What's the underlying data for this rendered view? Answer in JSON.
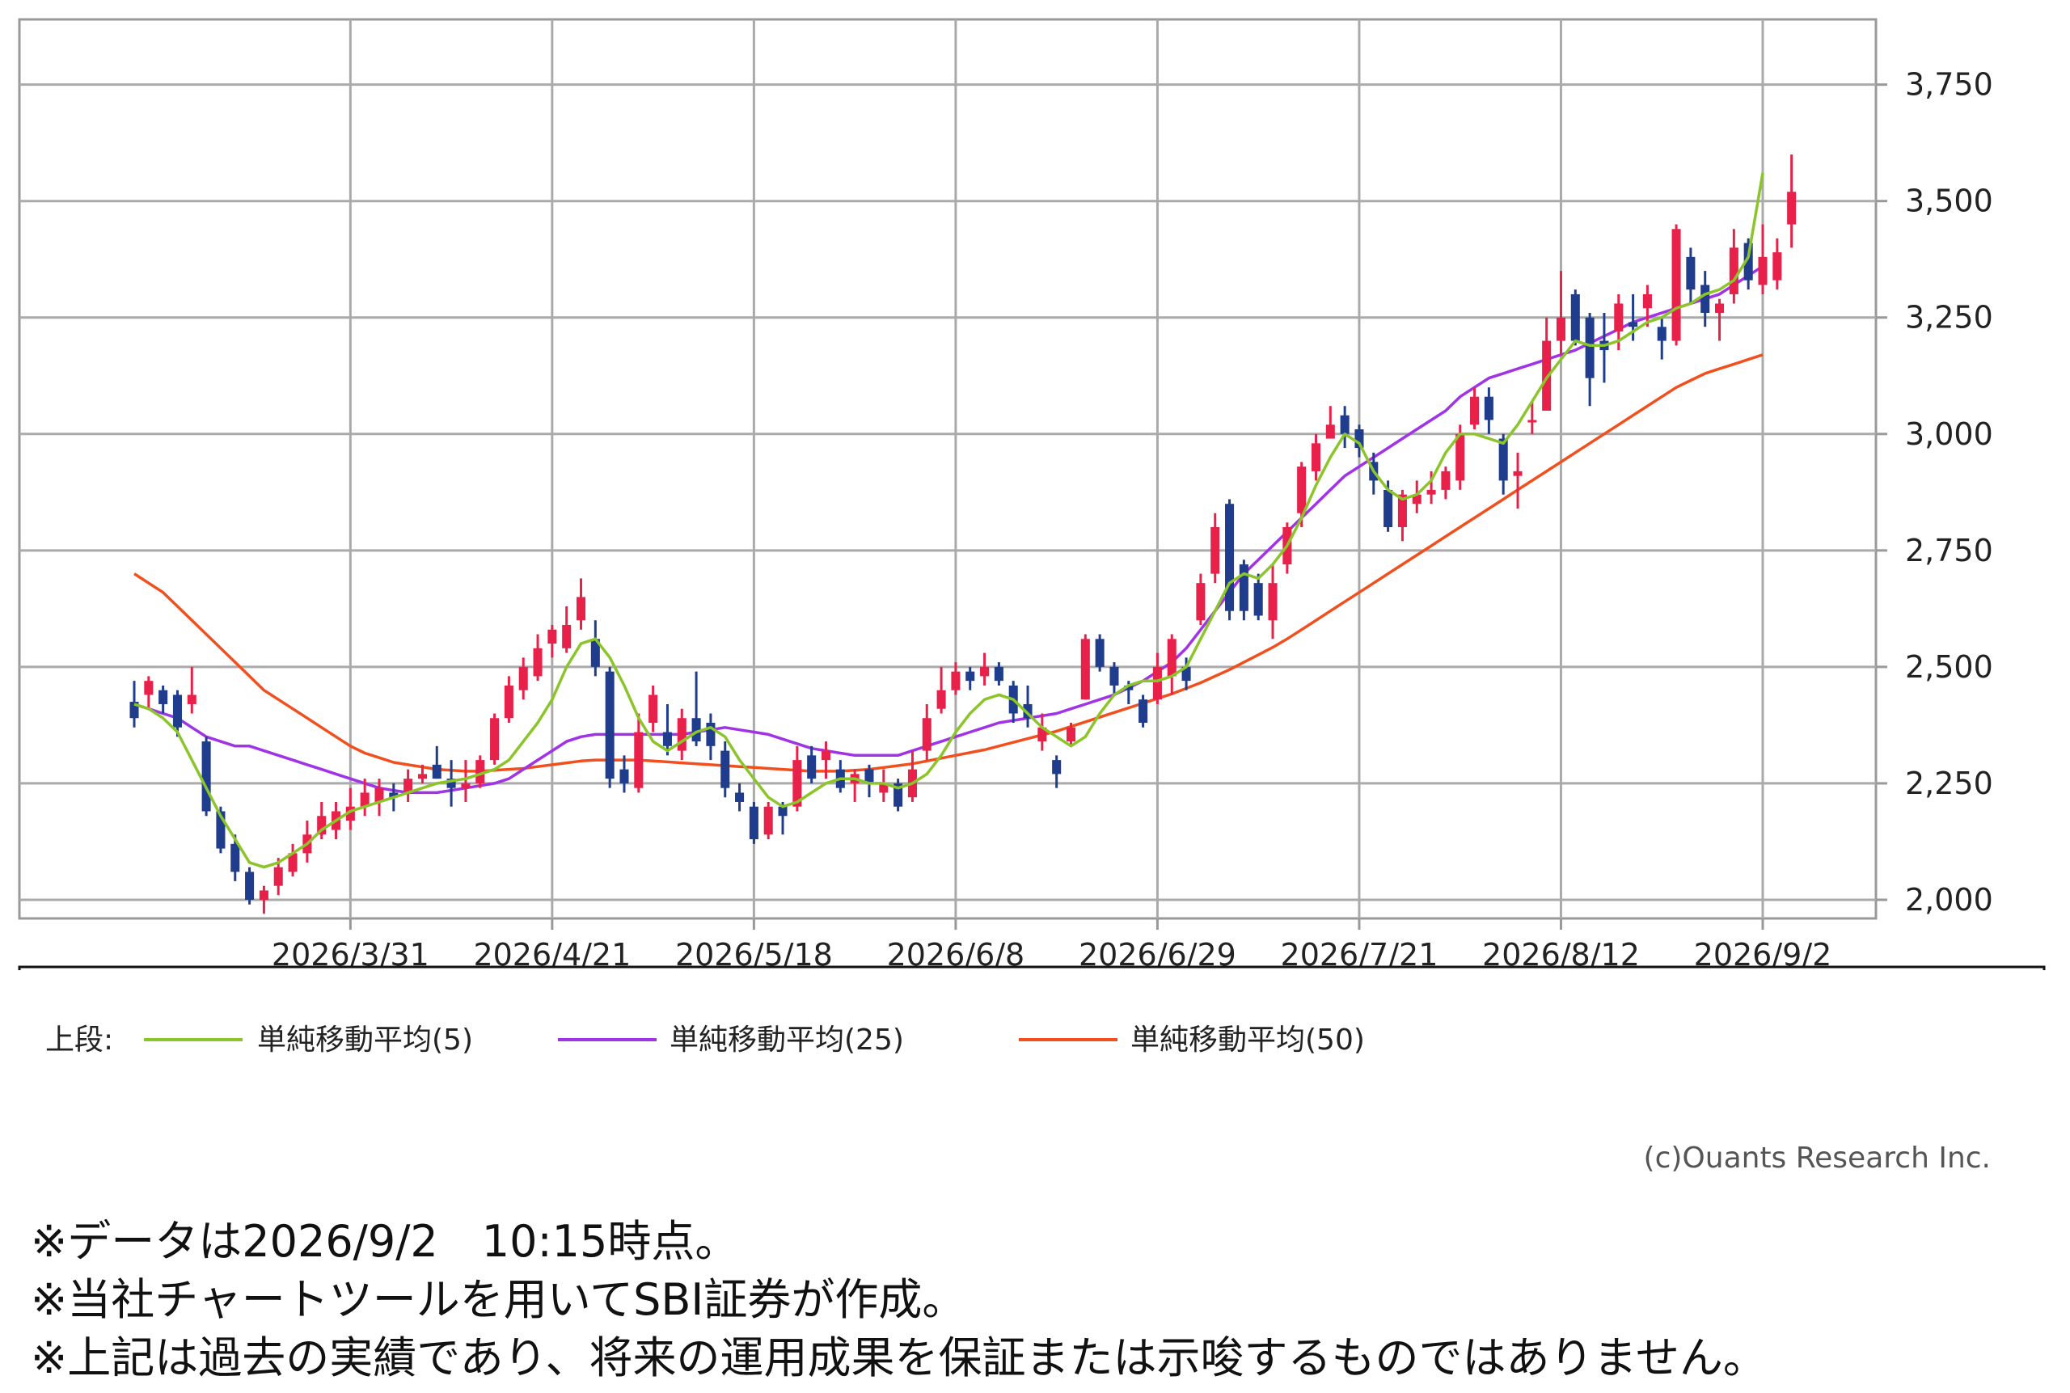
{
  "chart_data": {
    "type": "candlestick",
    "y_ticks": [
      "3,750",
      "3,500",
      "3,250",
      "3,000",
      "2,750",
      "2,500",
      "2,250",
      "2,000"
    ],
    "y_tick_values": [
      3750,
      3500,
      3250,
      3000,
      2750,
      2500,
      2250,
      2000
    ],
    "ylim": [
      1960,
      3890
    ],
    "x_ticks": [
      "2026/3/31",
      "2026/4/21",
      "2026/5/18",
      "2026/6/8",
      "2026/6/29",
      "2026/7/21",
      "2026/8/12",
      "2026/9/2"
    ],
    "x_tick_index": [
      15,
      29,
      43,
      57,
      71,
      85,
      99,
      113
    ],
    "n_candles": 114,
    "grid": true,
    "colors": {
      "up": "#e8214a",
      "down": "#1f3d8c",
      "ma5": "#8bc52a",
      "ma25": "#a033e6",
      "ma50": "#f0501e"
    },
    "candles_ohlc": [
      [
        2425,
        2390,
        2470,
        2370
      ],
      [
        2440,
        2470,
        2480,
        2410
      ],
      [
        2450,
        2420,
        2460,
        2400
      ],
      [
        2440,
        2370,
        2450,
        2350
      ],
      [
        2420,
        2440,
        2500,
        2400
      ],
      [
        2340,
        2190,
        2350,
        2180
      ],
      [
        2190,
        2110,
        2200,
        2100
      ],
      [
        2120,
        2060,
        2140,
        2040
      ],
      [
        2060,
        2000,
        2070,
        1990
      ],
      [
        2000,
        2020,
        2030,
        1970
      ],
      [
        2030,
        2070,
        2090,
        2010
      ],
      [
        2060,
        2100,
        2120,
        2050
      ],
      [
        2100,
        2140,
        2170,
        2080
      ],
      [
        2140,
        2180,
        2210,
        2130
      ],
      [
        2150,
        2190,
        2210,
        2130
      ],
      [
        2170,
        2200,
        2240,
        2150
      ],
      [
        2200,
        2230,
        2260,
        2180
      ],
      [
        2210,
        2240,
        2260,
        2180
      ],
      [
        2230,
        2220,
        2250,
        2190
      ],
      [
        2230,
        2260,
        2280,
        2210
      ],
      [
        2260,
        2270,
        2290,
        2250
      ],
      [
        2290,
        2260,
        2330,
        2260
      ],
      [
        2260,
        2240,
        2300,
        2200
      ],
      [
        2240,
        2250,
        2300,
        2210
      ],
      [
        2250,
        2300,
        2310,
        2240
      ],
      [
        2300,
        2390,
        2400,
        2290
      ],
      [
        2390,
        2460,
        2480,
        2380
      ],
      [
        2450,
        2500,
        2520,
        2430
      ],
      [
        2480,
        2540,
        2570,
        2470
      ],
      [
        2550,
        2580,
        2590,
        2520
      ],
      [
        2540,
        2590,
        2630,
        2530
      ],
      [
        2600,
        2650,
        2690,
        2580
      ],
      [
        2560,
        2500,
        2600,
        2480
      ],
      [
        2490,
        2260,
        2500,
        2240
      ],
      [
        2280,
        2250,
        2310,
        2230
      ],
      [
        2240,
        2360,
        2400,
        2230
      ],
      [
        2380,
        2440,
        2460,
        2360
      ],
      [
        2360,
        2330,
        2420,
        2310
      ],
      [
        2320,
        2390,
        2410,
        2300
      ],
      [
        2390,
        2340,
        2490,
        2330
      ],
      [
        2380,
        2330,
        2400,
        2300
      ],
      [
        2320,
        2240,
        2340,
        2220
      ],
      [
        2230,
        2210,
        2250,
        2190
      ],
      [
        2200,
        2130,
        2210,
        2120
      ],
      [
        2140,
        2200,
        2210,
        2130
      ],
      [
        2200,
        2180,
        2210,
        2140
      ],
      [
        2200,
        2300,
        2330,
        2190
      ],
      [
        2310,
        2260,
        2330,
        2250
      ],
      [
        2300,
        2320,
        2340,
        2260
      ],
      [
        2280,
        2240,
        2300,
        2230
      ],
      [
        2250,
        2270,
        2280,
        2210
      ],
      [
        2280,
        2250,
        2290,
        2220
      ],
      [
        2230,
        2250,
        2280,
        2210
      ],
      [
        2250,
        2200,
        2260,
        2190
      ],
      [
        2220,
        2280,
        2320,
        2210
      ],
      [
        2320,
        2390,
        2420,
        2300
      ],
      [
        2410,
        2450,
        2500,
        2400
      ],
      [
        2450,
        2490,
        2510,
        2440
      ],
      [
        2490,
        2470,
        2500,
        2450
      ],
      [
        2480,
        2500,
        2530,
        2460
      ],
      [
        2500,
        2470,
        2510,
        2460
      ],
      [
        2460,
        2400,
        2470,
        2380
      ],
      [
        2420,
        2390,
        2460,
        2370
      ],
      [
        2340,
        2370,
        2400,
        2320
      ],
      [
        2300,
        2270,
        2310,
        2240
      ],
      [
        2340,
        2370,
        2380,
        2330
      ],
      [
        2430,
        2560,
        2570,
        2430
      ],
      [
        2560,
        2500,
        2570,
        2490
      ],
      [
        2500,
        2460,
        2510,
        2440
      ],
      [
        2460,
        2450,
        2470,
        2420
      ],
      [
        2430,
        2380,
        2440,
        2370
      ],
      [
        2430,
        2500,
        2530,
        2420
      ],
      [
        2480,
        2560,
        2570,
        2440
      ],
      [
        2500,
        2470,
        2520,
        2450
      ],
      [
        2600,
        2680,
        2700,
        2590
      ],
      [
        2700,
        2800,
        2830,
        2680
      ],
      [
        2850,
        2620,
        2860,
        2600
      ],
      [
        2720,
        2620,
        2730,
        2600
      ],
      [
        2680,
        2610,
        2700,
        2600
      ],
      [
        2600,
        2680,
        2720,
        2560
      ],
      [
        2720,
        2800,
        2810,
        2700
      ],
      [
        2830,
        2930,
        2940,
        2800
      ],
      [
        2920,
        2980,
        3000,
        2900
      ],
      [
        2990,
        3020,
        3060,
        3000
      ],
      [
        3040,
        3000,
        3060,
        2970
      ],
      [
        3010,
        2970,
        3020,
        2950
      ],
      [
        2940,
        2900,
        2960,
        2870
      ],
      [
        2880,
        2800,
        2900,
        2790
      ],
      [
        2800,
        2870,
        2880,
        2770
      ],
      [
        2850,
        2870,
        2900,
        2830
      ],
      [
        2870,
        2880,
        2920,
        2850
      ],
      [
        2880,
        2920,
        2930,
        2860
      ],
      [
        2900,
        3000,
        3020,
        2880
      ],
      [
        3020,
        3080,
        3100,
        3010
      ],
      [
        3080,
        3030,
        3100,
        3000
      ],
      [
        2990,
        2900,
        3000,
        2870
      ],
      [
        2910,
        2920,
        2960,
        2840
      ],
      [
        3030,
        3030,
        3070,
        3000
      ],
      [
        3050,
        3200,
        3250,
        3050
      ],
      [
        3200,
        3250,
        3350,
        3170
      ],
      [
        3300,
        3200,
        3310,
        3190
      ],
      [
        3250,
        3120,
        3260,
        3060
      ],
      [
        3200,
        3180,
        3260,
        3110
      ],
      [
        3220,
        3280,
        3300,
        3180
      ],
      [
        3240,
        3230,
        3300,
        3200
      ],
      [
        3270,
        3300,
        3320,
        3230
      ],
      [
        3230,
        3200,
        3250,
        3160
      ],
      [
        3200,
        3440,
        3450,
        3190
      ],
      [
        3380,
        3310,
        3400,
        3280
      ],
      [
        3320,
        3260,
        3350,
        3230
      ],
      [
        3260,
        3280,
        3290,
        3200
      ],
      [
        3300,
        3400,
        3440,
        3280
      ],
      [
        3410,
        3330,
        3420,
        3310
      ],
      [
        3320,
        3380,
        3450,
        3300
      ],
      [
        3330,
        3390,
        3420,
        3310
      ],
      [
        3450,
        3520,
        3600,
        3400
      ]
    ],
    "ma5": [
      2420,
      2410,
      2390,
      2360,
      2300,
      2240,
      2180,
      2130,
      2080,
      2070,
      2080,
      2100,
      2120,
      2150,
      2170,
      2190,
      2200,
      2210,
      2220,
      2230,
      2240,
      2250,
      2255,
      2260,
      2270,
      2280,
      2300,
      2340,
      2380,
      2430,
      2500,
      2550,
      2560,
      2520,
      2460,
      2390,
      2340,
      2320,
      2340,
      2360,
      2370,
      2350,
      2300,
      2260,
      2220,
      2200,
      2210,
      2230,
      2250,
      2260,
      2260,
      2250,
      2250,
      2240,
      2250,
      2270,
      2310,
      2360,
      2400,
      2430,
      2440,
      2430,
      2400,
      2370,
      2350,
      2330,
      2350,
      2400,
      2440,
      2460,
      2470,
      2470,
      2480,
      2500,
      2560,
      2620,
      2680,
      2700,
      2690,
      2720,
      2760,
      2820,
      2890,
      2950,
      3000,
      2980,
      2920,
      2880,
      2860,
      2870,
      2900,
      2960,
      3000,
      3000,
      2990,
      2980,
      3020,
      3070,
      3120,
      3160,
      3200,
      3190,
      3190,
      3200,
      3220,
      3240,
      3250,
      3270,
      3280,
      3300,
      3310,
      3330,
      3380,
      3560
    ],
    "ma25": [
      2420,
      2410,
      2400,
      2390,
      2370,
      2350,
      2340,
      2330,
      2330,
      2320,
      2310,
      2300,
      2290,
      2280,
      2270,
      2260,
      2250,
      2240,
      2235,
      2230,
      2230,
      2230,
      2235,
      2240,
      2245,
      2250,
      2260,
      2280,
      2300,
      2320,
      2340,
      2350,
      2355,
      2355,
      2355,
      2355,
      2355,
      2355,
      2355,
      2360,
      2365,
      2370,
      2365,
      2360,
      2355,
      2345,
      2335,
      2325,
      2320,
      2315,
      2310,
      2310,
      2310,
      2310,
      2320,
      2330,
      2340,
      2350,
      2360,
      2370,
      2380,
      2385,
      2390,
      2395,
      2400,
      2410,
      2420,
      2430,
      2440,
      2455,
      2470,
      2490,
      2510,
      2540,
      2580,
      2620,
      2660,
      2700,
      2730,
      2760,
      2790,
      2820,
      2850,
      2880,
      2910,
      2930,
      2950,
      2970,
      2990,
      3010,
      3030,
      3050,
      3080,
      3100,
      3120,
      3130,
      3140,
      3150,
      3160,
      3170,
      3180,
      3195,
      3210,
      3225,
      3240,
      3250,
      3260,
      3270,
      3280,
      3290,
      3300,
      3320,
      3340,
      3360
    ],
    "ma50": [
      2700,
      2680,
      2660,
      2630,
      2600,
      2570,
      2540,
      2510,
      2480,
      2450,
      2430,
      2410,
      2390,
      2370,
      2350,
      2330,
      2315,
      2305,
      2295,
      2290,
      2285,
      2280,
      2278,
      2276,
      2276,
      2278,
      2280,
      2282,
      2286,
      2290,
      2294,
      2298,
      2300,
      2300,
      2300,
      2300,
      2298,
      2296,
      2294,
      2292,
      2290,
      2288,
      2286,
      2284,
      2282,
      2280,
      2278,
      2276,
      2276,
      2276,
      2278,
      2280,
      2284,
      2288,
      2292,
      2298,
      2304,
      2310,
      2316,
      2322,
      2330,
      2338,
      2346,
      2354,
      2362,
      2372,
      2382,
      2392,
      2402,
      2412,
      2422,
      2432,
      2442,
      2454,
      2466,
      2480,
      2494,
      2510,
      2526,
      2542,
      2560,
      2580,
      2600,
      2620,
      2640,
      2660,
      2680,
      2700,
      2720,
      2740,
      2760,
      2780,
      2800,
      2820,
      2840,
      2860,
      2880,
      2900,
      2920,
      2940,
      2960,
      2980,
      3000,
      3020,
      3040,
      3060,
      3080,
      3100,
      3115,
      3130,
      3140,
      3150,
      3160,
      3170
    ]
  },
  "legend": {
    "prefix": "上段:",
    "items": [
      {
        "label": "単純移動平均(5)",
        "color": "#8bc52a"
      },
      {
        "label": "単純移動平均(25)",
        "color": "#a033e6"
      },
      {
        "label": "単純移動平均(50)",
        "color": "#f0501e"
      }
    ]
  },
  "copyright": "(c)Ouants Research Inc.",
  "notes": [
    "※データは2026/9/2　10:15時点。",
    "※当社チャートツールを用いてSBI証券が作成。",
    "※上記は過去の実績であり、将来の運用成果を保証または示唆するものではありません。"
  ]
}
